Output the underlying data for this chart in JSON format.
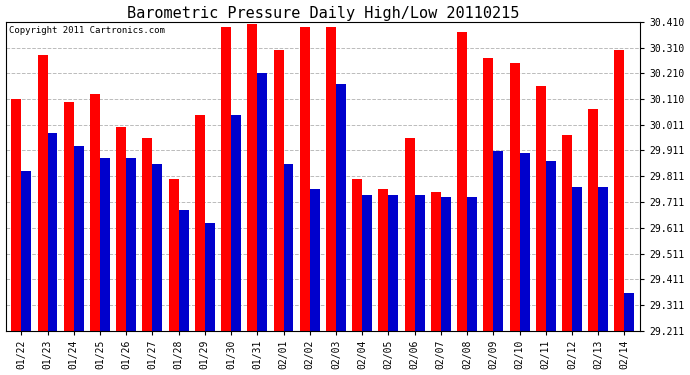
{
  "title": "Barometric Pressure Daily High/Low 20110215",
  "copyright": "Copyright 2011 Cartronics.com",
  "dates": [
    "01/22",
    "01/23",
    "01/24",
    "01/25",
    "01/26",
    "01/27",
    "01/28",
    "01/29",
    "01/30",
    "01/31",
    "02/01",
    "02/02",
    "02/03",
    "02/04",
    "02/05",
    "02/06",
    "02/07",
    "02/08",
    "02/09",
    "02/10",
    "02/11",
    "02/12",
    "02/13",
    "02/14"
  ],
  "highs": [
    30.11,
    30.28,
    30.1,
    30.13,
    30.0,
    29.96,
    29.8,
    30.05,
    30.39,
    30.4,
    30.3,
    30.39,
    30.39,
    29.8,
    29.76,
    29.96,
    29.75,
    30.37,
    30.27,
    30.25,
    30.16,
    29.97,
    30.07,
    30.3
  ],
  "lows": [
    29.83,
    29.98,
    29.93,
    29.88,
    29.88,
    29.86,
    29.68,
    29.63,
    30.05,
    30.21,
    29.86,
    29.76,
    30.17,
    29.74,
    29.74,
    29.74,
    29.73,
    29.73,
    29.91,
    29.9,
    29.87,
    29.77,
    29.77,
    29.36
  ],
  "ymin": 29.211,
  "ymax": 30.41,
  "ytick_vals": [
    29.211,
    29.311,
    29.411,
    29.511,
    29.611,
    29.711,
    29.811,
    29.911,
    30.011,
    30.11,
    30.21,
    30.31,
    30.41
  ],
  "ytick_labels": [
    "29.211",
    "29.311",
    "29.411",
    "29.511",
    "29.611",
    "29.711",
    "29.811",
    "29.911",
    "30.011",
    "30.110",
    "30.210",
    "30.310",
    "30.410"
  ],
  "bar_color_high": "#ff0000",
  "bar_color_low": "#0000cc",
  "bg_color": "#ffffff",
  "grid_color": "#bbbbbb",
  "title_fontsize": 11,
  "copyright_fontsize": 6.5,
  "tick_fontsize": 7,
  "bar_width": 0.38
}
